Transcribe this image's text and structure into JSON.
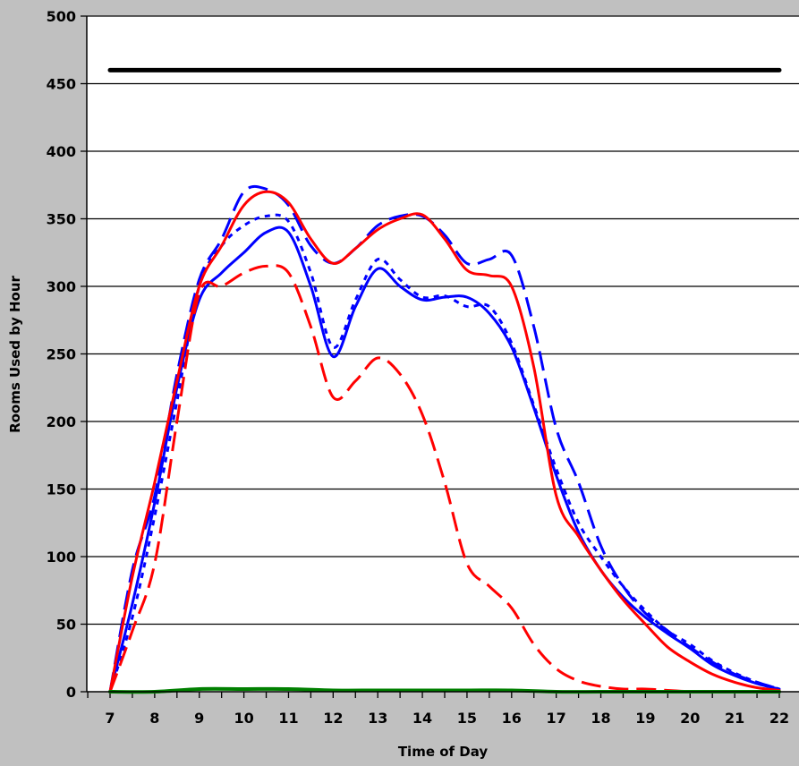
{
  "chart_data": {
    "type": "line",
    "title": "",
    "xlabel": "Time of Day",
    "ylabel": "Rooms Used by Hour",
    "xlim": [
      7,
      22
    ],
    "ylim": [
      0,
      500
    ],
    "x_ticks": [
      7,
      8,
      9,
      10,
      11,
      12,
      13,
      14,
      15,
      16,
      17,
      18,
      19,
      20,
      21,
      22
    ],
    "y_ticks": [
      0,
      50,
      100,
      150,
      200,
      250,
      300,
      350,
      400,
      450,
      500
    ],
    "grid": "horizontal",
    "legend": "none",
    "series": [
      {
        "color": "#000000",
        "style": "solid",
        "width": 5,
        "points": [
          [
            7,
            460
          ],
          [
            22,
            460
          ]
        ]
      },
      {
        "color": "#0000ff",
        "style": "solid",
        "width": 3,
        "points": [
          [
            7,
            0
          ],
          [
            7.5,
            65
          ],
          [
            8,
            140
          ],
          [
            8.5,
            225
          ],
          [
            9,
            290
          ],
          [
            9.5,
            310
          ],
          [
            10,
            325
          ],
          [
            10.5,
            340
          ],
          [
            11,
            340
          ],
          [
            11.5,
            300
          ],
          [
            12,
            248
          ],
          [
            12.5,
            285
          ],
          [
            13,
            313
          ],
          [
            13.5,
            300
          ],
          [
            14,
            290
          ],
          [
            14.5,
            292
          ],
          [
            15,
            292
          ],
          [
            15.5,
            280
          ],
          [
            16,
            255
          ],
          [
            16.5,
            210
          ],
          [
            17,
            160
          ],
          [
            17.5,
            118
          ],
          [
            18,
            90
          ],
          [
            18.5,
            70
          ],
          [
            19,
            55
          ],
          [
            19.5,
            43
          ],
          [
            20,
            32
          ],
          [
            20.5,
            20
          ],
          [
            21,
            12
          ],
          [
            21.5,
            6
          ],
          [
            22,
            2
          ]
        ]
      },
      {
        "color": "#0000ff",
        "style": "dash",
        "width": 3,
        "points": [
          [
            7,
            0
          ],
          [
            7.5,
            90
          ],
          [
            8,
            145
          ],
          [
            8.5,
            235
          ],
          [
            9,
            305
          ],
          [
            9.5,
            335
          ],
          [
            10,
            370
          ],
          [
            10.5,
            372
          ],
          [
            11,
            360
          ],
          [
            11.5,
            330
          ],
          [
            12,
            317
          ],
          [
            12.5,
            328
          ],
          [
            13,
            345
          ],
          [
            13.5,
            352
          ],
          [
            14,
            352
          ],
          [
            14.5,
            338
          ],
          [
            15,
            317
          ],
          [
            15.5,
            320
          ],
          [
            16,
            323
          ],
          [
            16.5,
            270
          ],
          [
            17,
            195
          ],
          [
            17.5,
            155
          ],
          [
            18,
            108
          ],
          [
            18.5,
            78
          ],
          [
            19,
            58
          ],
          [
            19.5,
            45
          ],
          [
            20,
            33
          ],
          [
            20.5,
            22
          ],
          [
            21,
            13
          ],
          [
            21.5,
            7
          ],
          [
            22,
            2
          ]
        ]
      },
      {
        "color": "#0000ff",
        "style": "dot",
        "width": 3,
        "points": [
          [
            7,
            0
          ],
          [
            7.5,
            55
          ],
          [
            8,
            130
          ],
          [
            8.5,
            215
          ],
          [
            9,
            300
          ],
          [
            9.5,
            330
          ],
          [
            10,
            345
          ],
          [
            10.5,
            352
          ],
          [
            11,
            348
          ],
          [
            11.5,
            310
          ],
          [
            12,
            255
          ],
          [
            12.5,
            290
          ],
          [
            13,
            320
          ],
          [
            13.5,
            305
          ],
          [
            14,
            292
          ],
          [
            14.5,
            293
          ],
          [
            15,
            285
          ],
          [
            15.5,
            285
          ],
          [
            16,
            258
          ],
          [
            16.5,
            212
          ],
          [
            17,
            165
          ],
          [
            17.5,
            125
          ],
          [
            18,
            100
          ],
          [
            18.5,
            78
          ],
          [
            19,
            60
          ],
          [
            19.5,
            45
          ],
          [
            20,
            35
          ],
          [
            20.5,
            23
          ],
          [
            21,
            14
          ],
          [
            21.5,
            7
          ],
          [
            22,
            2
          ]
        ]
      },
      {
        "color": "#ff0000",
        "style": "solid",
        "width": 3,
        "points": [
          [
            7,
            0
          ],
          [
            7.5,
            85
          ],
          [
            8,
            155
          ],
          [
            8.5,
            230
          ],
          [
            9,
            300
          ],
          [
            9.5,
            330
          ],
          [
            10,
            360
          ],
          [
            10.5,
            370
          ],
          [
            11,
            362
          ],
          [
            11.5,
            335
          ],
          [
            12,
            317
          ],
          [
            12.5,
            328
          ],
          [
            13,
            342
          ],
          [
            13.5,
            350
          ],
          [
            14,
            353
          ],
          [
            14.5,
            335
          ],
          [
            15,
            312
          ],
          [
            15.5,
            308
          ],
          [
            16,
            300
          ],
          [
            16.5,
            240
          ],
          [
            17,
            145
          ],
          [
            17.5,
            115
          ],
          [
            18,
            90
          ],
          [
            18.5,
            68
          ],
          [
            19,
            50
          ],
          [
            19.5,
            33
          ],
          [
            20,
            22
          ],
          [
            20.5,
            13
          ],
          [
            21,
            7
          ],
          [
            21.5,
            3
          ],
          [
            22,
            1
          ]
        ]
      },
      {
        "color": "#ff0000",
        "style": "dash",
        "width": 3,
        "points": [
          [
            7,
            0
          ],
          [
            7.5,
            45
          ],
          [
            8,
            95
          ],
          [
            8.5,
            200
          ],
          [
            9,
            295
          ],
          [
            9.5,
            300
          ],
          [
            10,
            310
          ],
          [
            10.5,
            315
          ],
          [
            11,
            310
          ],
          [
            11.5,
            270
          ],
          [
            12,
            218
          ],
          [
            12.5,
            230
          ],
          [
            13,
            247
          ],
          [
            13.5,
            235
          ],
          [
            14,
            205
          ],
          [
            14.5,
            155
          ],
          [
            15,
            95
          ],
          [
            15.5,
            78
          ],
          [
            16,
            62
          ],
          [
            16.5,
            35
          ],
          [
            17,
            17
          ],
          [
            17.5,
            8
          ],
          [
            18,
            4
          ],
          [
            18.5,
            2
          ],
          [
            19,
            2
          ],
          [
            19.5,
            1
          ],
          [
            20,
            0
          ]
        ]
      },
      {
        "color": "#008000",
        "style": "solid",
        "width": 4,
        "points": [
          [
            7,
            0
          ],
          [
            8,
            0
          ],
          [
            9,
            2
          ],
          [
            10,
            2
          ],
          [
            11,
            2
          ],
          [
            12,
            1
          ],
          [
            13,
            1
          ],
          [
            14,
            1
          ],
          [
            15,
            1
          ],
          [
            16,
            1
          ],
          [
            17,
            0
          ],
          [
            18,
            0
          ],
          [
            19,
            0
          ],
          [
            20,
            0
          ],
          [
            21,
            0
          ],
          [
            22,
            0
          ]
        ]
      }
    ]
  }
}
